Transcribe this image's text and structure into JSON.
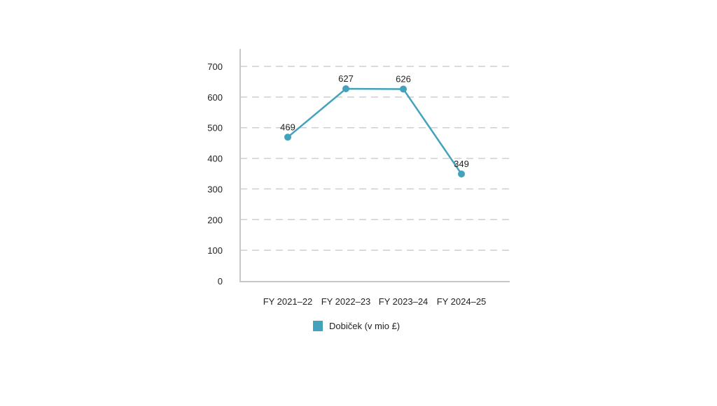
{
  "chart_data": {
    "type": "line",
    "title": "",
    "xlabel": "",
    "ylabel": "",
    "categories": [
      "FY 2021–22",
      "FY 2022–23",
      "FY 2023–24",
      "FY 2024–25"
    ],
    "series": [
      {
        "name": "Dobiček (v mio £)",
        "values": [
          469,
          627,
          626,
          349
        ],
        "color": "#44a3bc"
      }
    ],
    "ylim": [
      0,
      700
    ],
    "yticks": [
      0,
      100,
      200,
      300,
      400,
      500,
      600,
      700
    ],
    "grid": true,
    "legend": "bottom",
    "data_labels": true
  }
}
